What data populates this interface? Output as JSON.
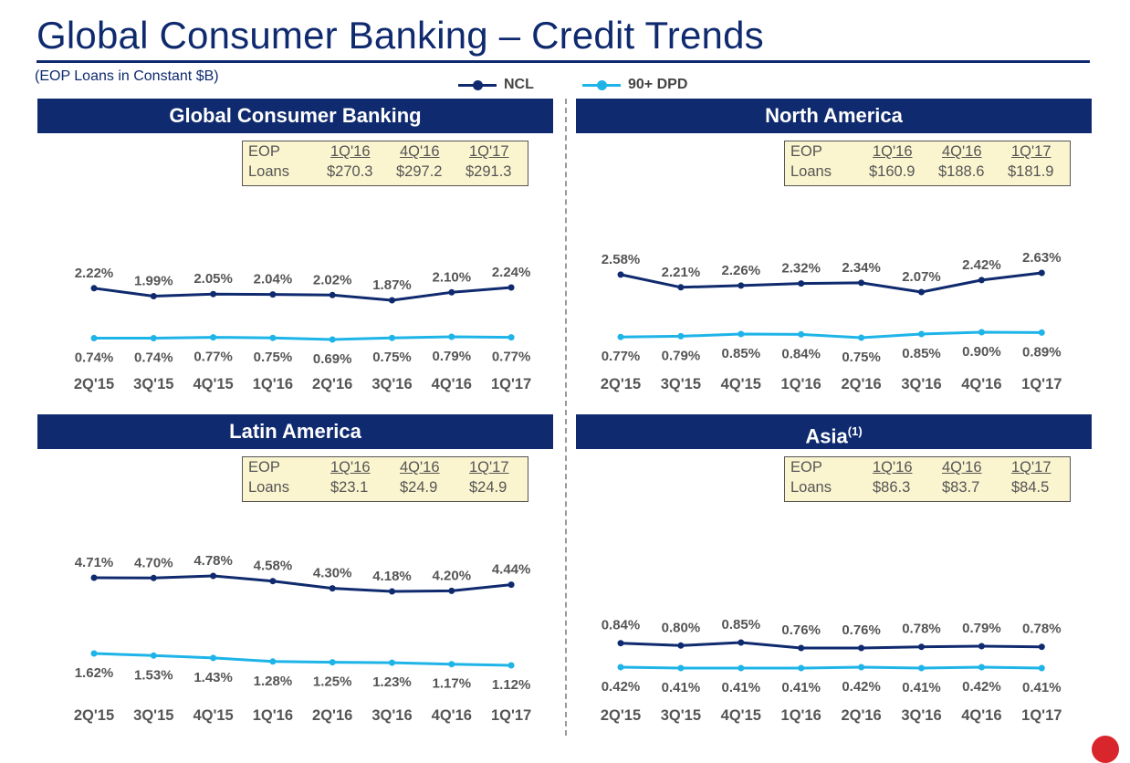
{
  "title": "Global Consumer Banking – Credit Trends",
  "subtitle": "(EOP Loans in Constant $B)",
  "legend": {
    "ncl": "NCL",
    "dpd": "90+ DPD"
  },
  "colors": {
    "navy": "#0f2a6e",
    "ncl": "#0f2a6e",
    "dpd": "#1eb4e8",
    "box": "#fbf5cf"
  },
  "chart_data": [
    {
      "type": "line",
      "title": "Global Consumer Banking",
      "title_sup": "",
      "categories": [
        "2Q'15",
        "3Q'15",
        "4Q'15",
        "1Q'16",
        "2Q'16",
        "3Q'16",
        "4Q'16",
        "1Q'17"
      ],
      "series": [
        {
          "name": "NCL",
          "values": [
            2.22,
            1.99,
            2.05,
            2.04,
            2.02,
            1.87,
            2.1,
            2.24
          ],
          "labels": [
            "2.22%",
            "1.99%",
            "2.05%",
            "2.04%",
            "2.02%",
            "1.87%",
            "2.10%",
            "2.24%"
          ]
        },
        {
          "name": "90+ DPD",
          "values": [
            0.74,
            0.74,
            0.77,
            0.75,
            0.69,
            0.75,
            0.79,
            0.77
          ],
          "labels": [
            "0.74%",
            "0.74%",
            "0.77%",
            "0.75%",
            "0.69%",
            "0.75%",
            "0.79%",
            "0.77%"
          ]
        }
      ],
      "eop": {
        "label1": "EOP",
        "label2": "Loans",
        "periods": [
          "1Q'16",
          "4Q'16",
          "1Q'17"
        ],
        "values": [
          "$270.3",
          "$297.2",
          "$291.3"
        ]
      }
    },
    {
      "type": "line",
      "title": "North America",
      "title_sup": "",
      "categories": [
        "2Q'15",
        "3Q'15",
        "4Q'15",
        "1Q'16",
        "2Q'16",
        "3Q'16",
        "4Q'16",
        "1Q'17"
      ],
      "series": [
        {
          "name": "NCL",
          "values": [
            2.58,
            2.21,
            2.26,
            2.32,
            2.34,
            2.07,
            2.42,
            2.63
          ],
          "labels": [
            "2.58%",
            "2.21%",
            "2.26%",
            "2.32%",
            "2.34%",
            "2.07%",
            "2.42%",
            "2.63%"
          ]
        },
        {
          "name": "90+ DPD",
          "values": [
            0.77,
            0.79,
            0.85,
            0.84,
            0.75,
            0.85,
            0.9,
            0.89
          ],
          "labels": [
            "0.77%",
            "0.79%",
            "0.85%",
            "0.84%",
            "0.75%",
            "0.85%",
            "0.90%",
            "0.89%"
          ]
        }
      ],
      "eop": {
        "label1": "EOP",
        "label2": "Loans",
        "periods": [
          "1Q'16",
          "4Q'16",
          "1Q'17"
        ],
        "values": [
          "$160.9",
          "$188.6",
          "$181.9"
        ]
      }
    },
    {
      "type": "line",
      "title": "Latin America",
      "title_sup": "",
      "categories": [
        "2Q'15",
        "3Q'15",
        "4Q'15",
        "1Q'16",
        "2Q'16",
        "3Q'16",
        "4Q'16",
        "1Q'17"
      ],
      "series": [
        {
          "name": "NCL",
          "values": [
            4.71,
            4.7,
            4.78,
            4.58,
            4.3,
            4.18,
            4.2,
            4.44
          ],
          "labels": [
            "4.71%",
            "4.70%",
            "4.78%",
            "4.58%",
            "4.30%",
            "4.18%",
            "4.20%",
            "4.44%"
          ]
        },
        {
          "name": "90+ DPD",
          "values": [
            1.62,
            1.53,
            1.43,
            1.28,
            1.25,
            1.23,
            1.17,
            1.12
          ],
          "labels": [
            "1.62%",
            "1.53%",
            "1.43%",
            "1.28%",
            "1.25%",
            "1.23%",
            "1.17%",
            "1.12%"
          ]
        }
      ],
      "eop": {
        "label1": "EOP",
        "label2": "Loans",
        "periods": [
          "1Q'16",
          "4Q'16",
          "1Q'17"
        ],
        "values": [
          "$23.1",
          "$24.9",
          "$24.9"
        ]
      }
    },
    {
      "type": "line",
      "title": "Asia",
      "title_sup": "(1)",
      "categories": [
        "2Q'15",
        "3Q'15",
        "4Q'15",
        "1Q'16",
        "2Q'16",
        "3Q'16",
        "4Q'16",
        "1Q'17"
      ],
      "series": [
        {
          "name": "NCL",
          "values": [
            0.84,
            0.8,
            0.85,
            0.76,
            0.76,
            0.78,
            0.79,
            0.78
          ],
          "labels": [
            "0.84%",
            "0.80%",
            "0.85%",
            "0.76%",
            "0.76%",
            "0.78%",
            "0.79%",
            "0.78%"
          ]
        },
        {
          "name": "90+ DPD",
          "values": [
            0.42,
            0.41,
            0.41,
            0.41,
            0.42,
            0.41,
            0.42,
            0.41
          ],
          "labels": [
            "0.42%",
            "0.41%",
            "0.41%",
            "0.41%",
            "0.42%",
            "0.41%",
            "0.42%",
            "0.41%"
          ]
        }
      ],
      "eop": {
        "label1": "EOP",
        "label2": "Loans",
        "periods": [
          "1Q'16",
          "4Q'16",
          "1Q'17"
        ],
        "values": [
          "$86.3",
          "$83.7",
          "$84.5"
        ]
      }
    }
  ]
}
